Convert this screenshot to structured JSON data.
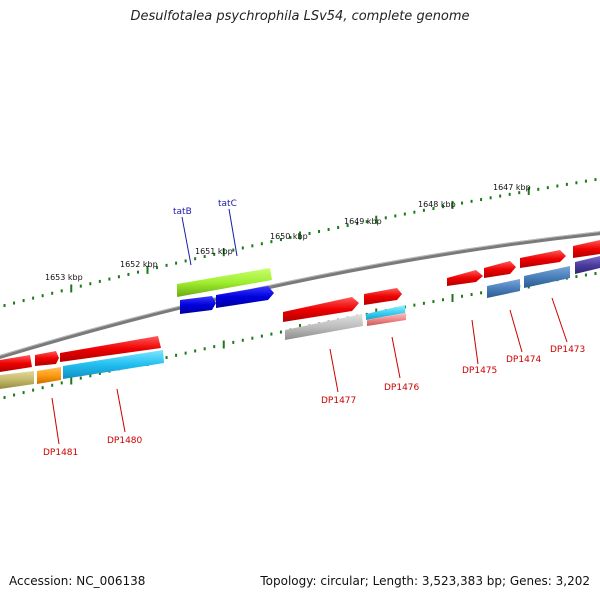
{
  "title": "Desulfotalea psychrophila LSv54, complete genome",
  "footer": {
    "accession": "Accession: NC_006138",
    "summary": "Topology: circular; Length: 3,523,383 bp; Genes: 3,202"
  },
  "kbp_labels": [
    "1653 kbp",
    "1652 kbp",
    "1651 kbp",
    "1650 kbp",
    "1649 kbp",
    "1648 kbp",
    "1647 kbp"
  ],
  "gene_labels": {
    "tatB": "tatB",
    "tatC": "tatC",
    "DP1481": "DP1481",
    "DP1480": "DP1480",
    "DP1477": "DP1477",
    "DP1476": "DP1476",
    "DP1475": "DP1475",
    "DP1474": "DP1474",
    "DP1473": "DP1473"
  },
  "colors": {
    "backbone": "#7a7a7a",
    "ticks": "#1a7a1a",
    "forward_gene": "#ee0000",
    "tatB_gene": "#a8f03a",
    "tatC_gene": "#0000dd",
    "label_blue": "#1a1aa8",
    "label_red": "#cc0000"
  }
}
